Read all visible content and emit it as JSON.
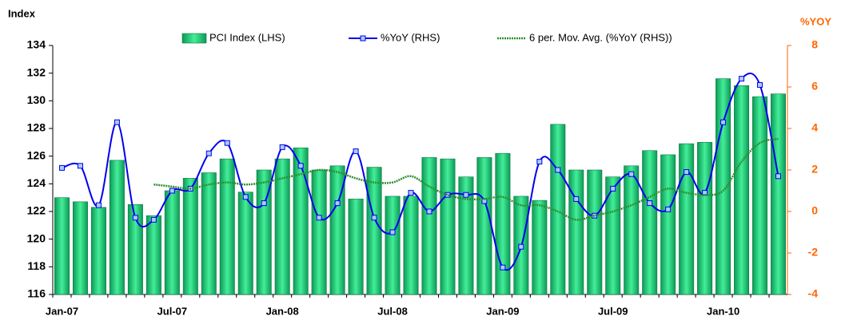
{
  "chart_data": {
    "type": "bar_line",
    "y_label": "Index",
    "y2_label": "%YOY",
    "categories": [
      "Jan-07",
      null,
      null,
      null,
      null,
      null,
      "Jul-07",
      null,
      null,
      null,
      null,
      null,
      "Jan-08",
      null,
      null,
      null,
      null,
      null,
      "Jul-08",
      null,
      null,
      null,
      null,
      null,
      "Jan-09",
      null,
      null,
      null,
      null,
      null,
      "Jul-09",
      null,
      null,
      null,
      null,
      null,
      "Jan-10",
      null,
      null,
      null
    ],
    "series": [
      {
        "name": "PCI Index (LHS)",
        "color": "#33dd88",
        "kind": "bar",
        "axis": "y",
        "values": [
          123.0,
          122.7,
          122.3,
          125.7,
          122.5,
          121.7,
          123.5,
          124.4,
          124.8,
          125.8,
          123.4,
          125.0,
          125.8,
          126.6,
          125.0,
          125.3,
          122.9,
          125.2,
          123.1,
          123.1,
          125.9,
          125.8,
          124.5,
          125.9,
          126.2,
          123.1,
          122.8,
          128.3,
          125.0,
          125.0,
          124.5,
          125.3,
          126.4,
          126.1,
          126.9,
          127.0,
          131.6,
          131.1,
          130.3,
          130.5
        ]
      },
      {
        "name": "%YoY (RHS)",
        "color": "#0000ee",
        "kind": "line",
        "axis": "y2",
        "values": [
          2.1,
          2.2,
          0.3,
          4.3,
          -0.3,
          -0.4,
          1.0,
          1.1,
          2.8,
          3.3,
          0.7,
          0.4,
          3.1,
          2.2,
          -0.3,
          0.4,
          2.9,
          -0.3,
          -1.0,
          0.9,
          0.0,
          0.8,
          0.8,
          0.5,
          -2.7,
          -1.7,
          2.4,
          2.0,
          0.6,
          -0.2,
          1.1,
          1.8,
          0.4,
          0.1,
          1.9,
          0.9,
          4.3,
          6.4,
          6.1,
          1.7
        ]
      },
      {
        "name": "6 per. Mov. Avg. (%YoY (RHS))",
        "color": "#2f8f2f",
        "kind": "ma",
        "axis": "y2",
        "values": [
          null,
          null,
          null,
          null,
          null,
          1.3,
          1.2,
          1.1,
          1.3,
          1.4,
          1.3,
          1.4,
          1.6,
          1.8,
          2.0,
          1.9,
          1.6,
          1.4,
          1.4,
          1.7,
          1.2,
          0.8,
          0.6,
          0.6,
          0.7,
          0.3,
          0.3,
          0.0,
          -0.4,
          -0.2,
          0.0,
          0.3,
          0.7,
          1.1,
          0.9,
          0.8,
          1.0,
          2.4,
          3.3,
          3.5
        ]
      }
    ],
    "ylim": [
      116,
      134
    ],
    "yticks": [
      116,
      118,
      120,
      122,
      124,
      126,
      128,
      130,
      132,
      134
    ],
    "y2lim": [
      -4,
      8
    ],
    "y2ticks": [
      -4,
      -2,
      0,
      2,
      4,
      6,
      8
    ]
  }
}
